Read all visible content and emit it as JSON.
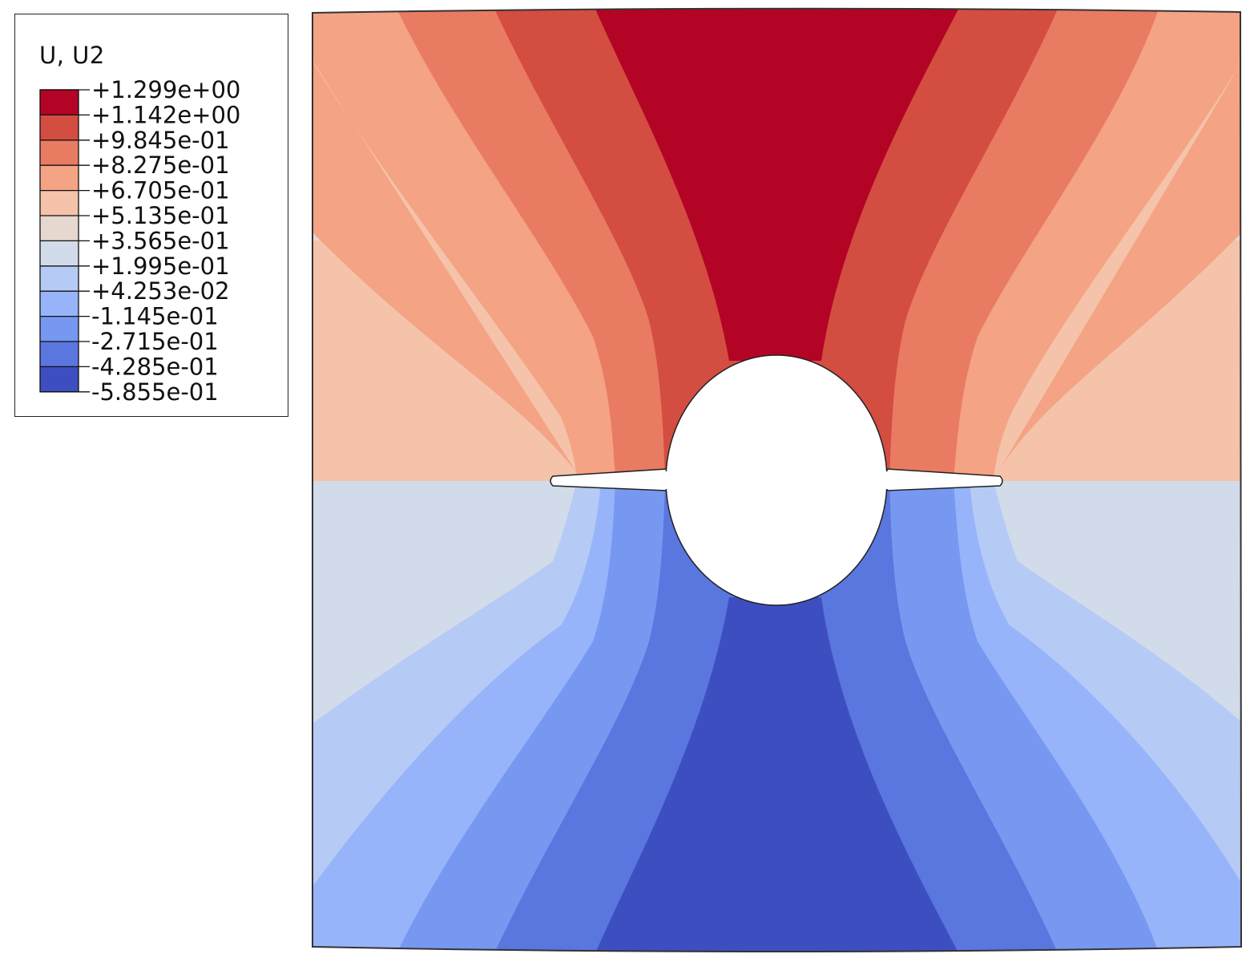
{
  "legend": {
    "title": "U, U2",
    "levels": [
      {
        "label": "+1.299e+00",
        "color": "#b30426"
      },
      {
        "label": "+1.142e+00",
        "color": "#d44d41"
      },
      {
        "label": "+9.845e-01",
        "color": "#e97b62"
      },
      {
        "label": "+8.275e-01",
        "color": "#f4a384"
      },
      {
        "label": "+6.705e-01",
        "color": "#f4c3aa"
      },
      {
        "label": "+5.135e-01",
        "color": "#e6d7cf"
      },
      {
        "label": "+3.565e-01",
        "color": "#d2dbea"
      },
      {
        "label": "+1.995e-01",
        "color": "#b5cbf6"
      },
      {
        "label": "+4.253e-02",
        "color": "#97b4fb"
      },
      {
        "label": "-1.145e-01",
        "color": "#7798f1"
      },
      {
        "label": "-2.715e-01",
        "color": "#5a76df"
      },
      {
        "label": "-4.285e-01",
        "color": "#3d4fc0"
      },
      {
        "label": "-5.855e-01",
        "color": ""
      }
    ]
  },
  "colors": {
    "outline": "#333333",
    "background": "#ffffff"
  }
}
